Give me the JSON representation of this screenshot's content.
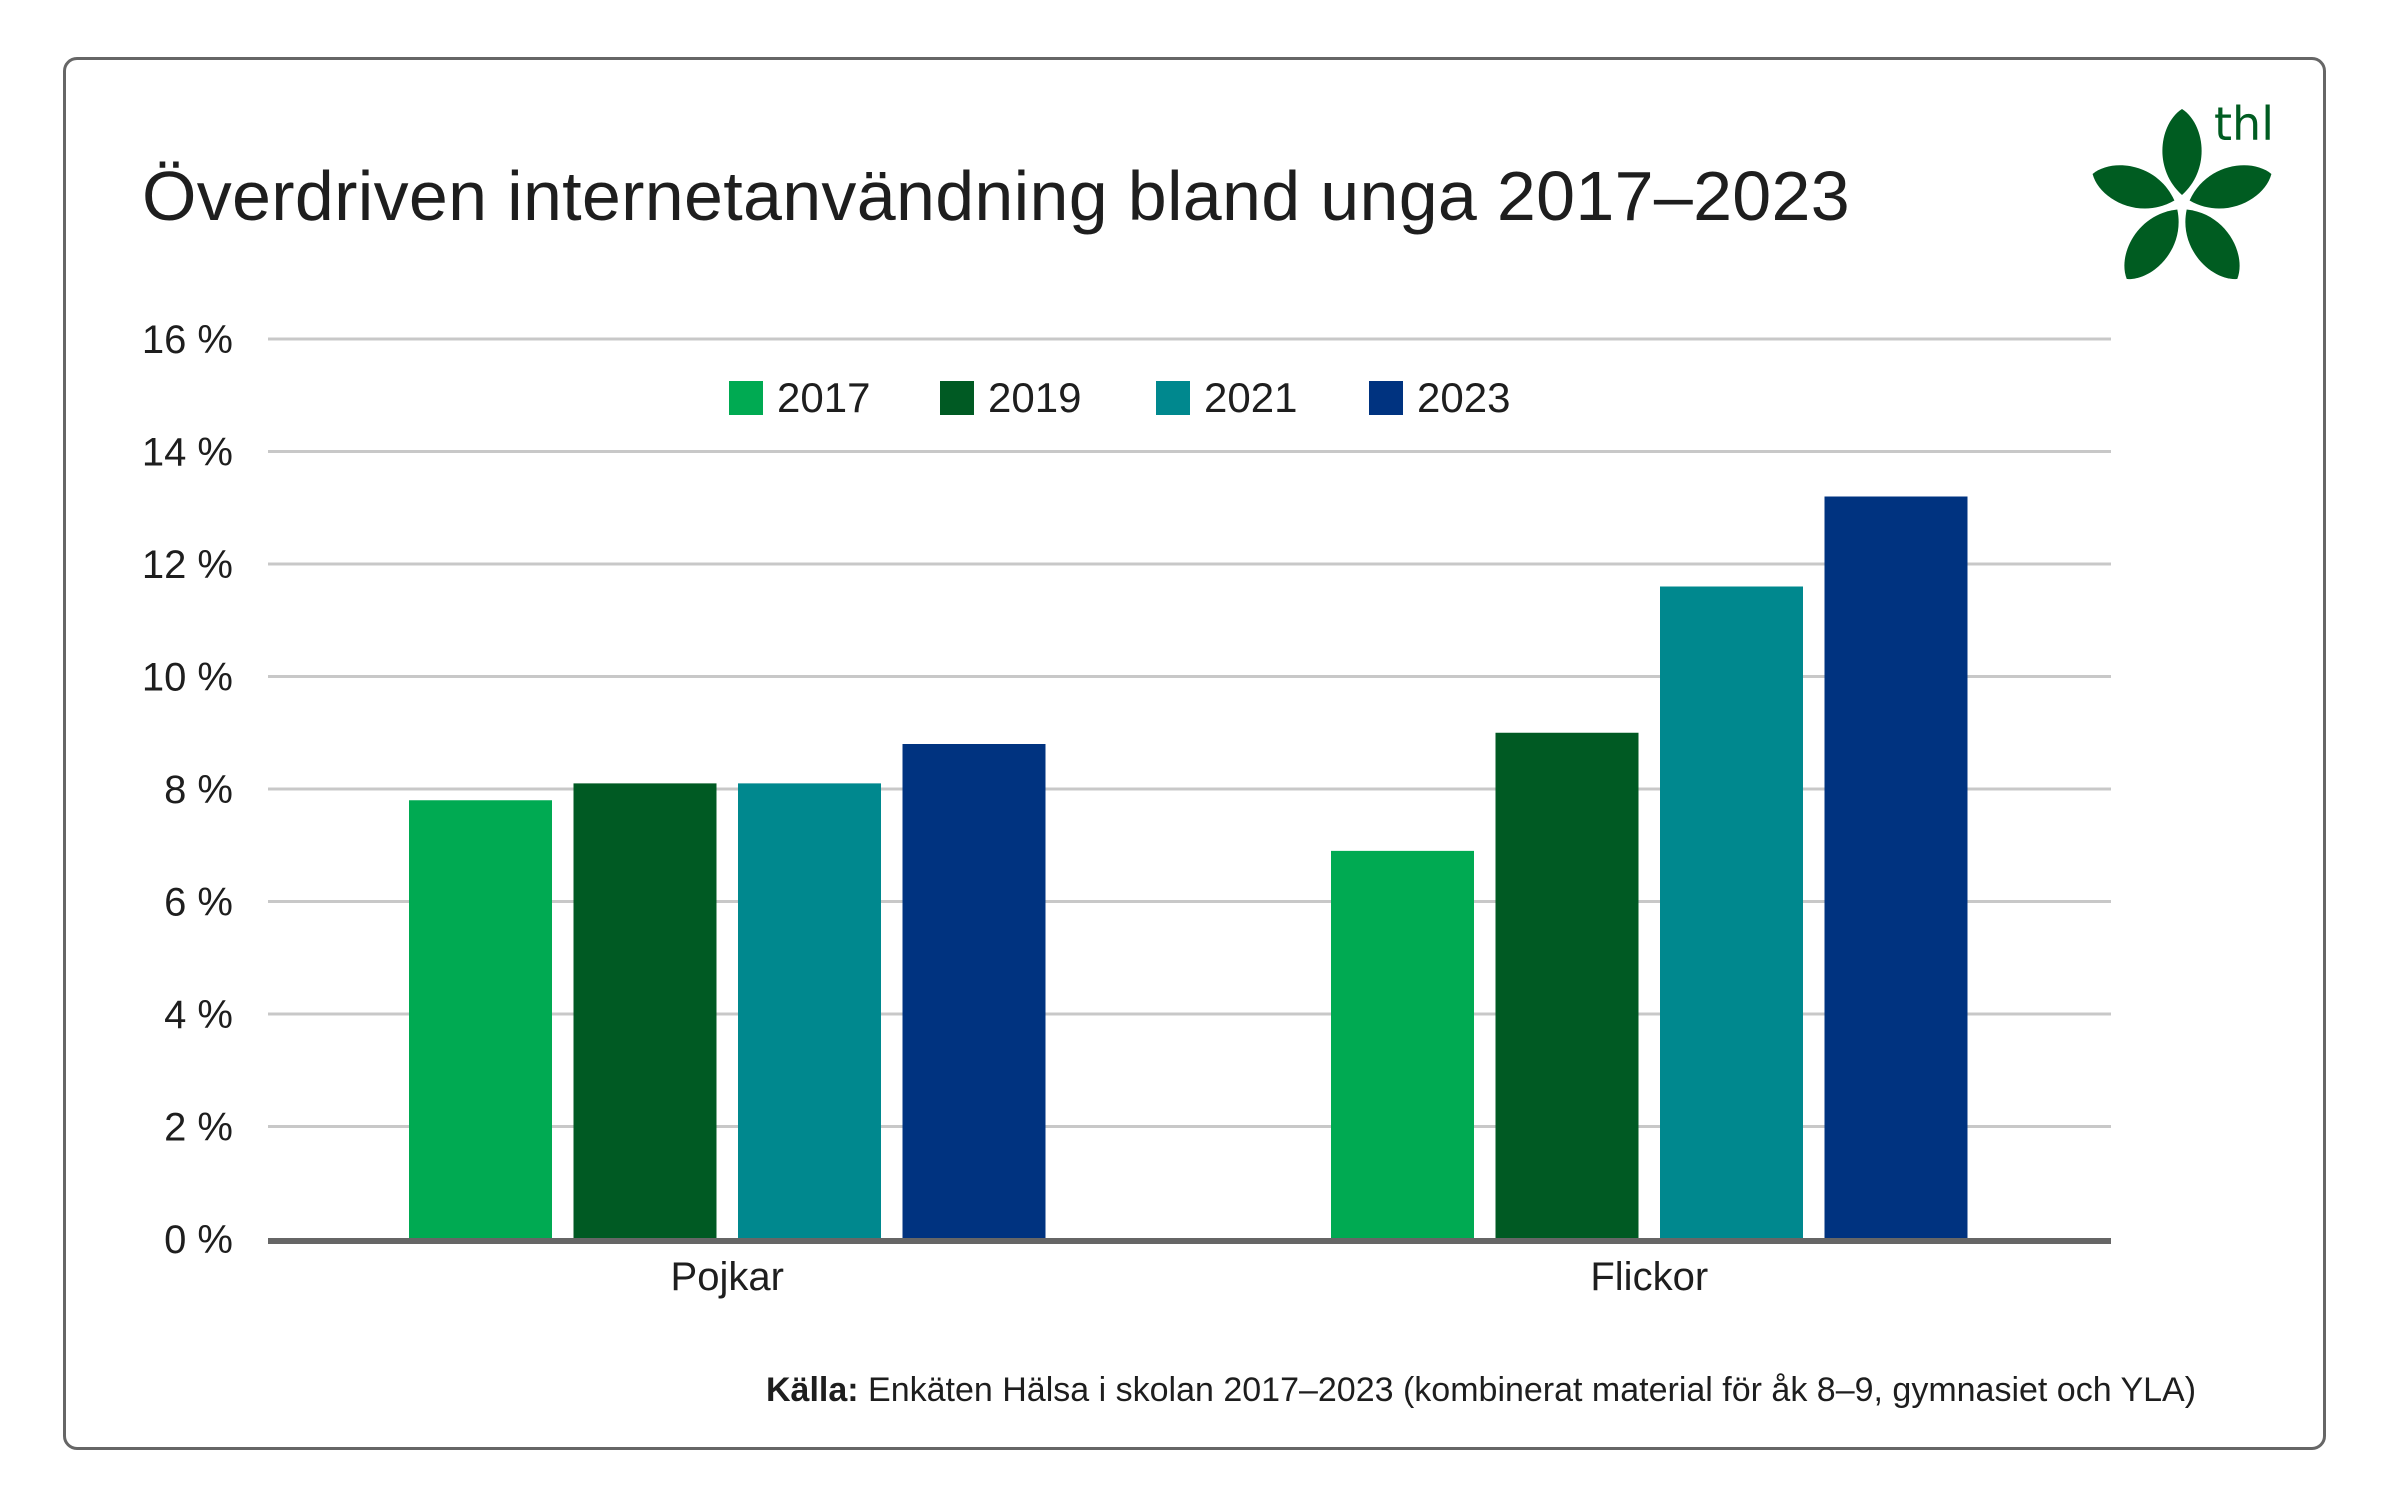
{
  "title": "Överdriven internetanvändning bland unga 2017–2023",
  "logo": {
    "text": "thl",
    "color": "#005c21"
  },
  "source": {
    "label": "Källa:",
    "text": " Enkäten Hälsa i skolan 2017–2023 (kombinerat material för åk 8–9, gymnasiet och YLA)"
  },
  "chart_data": {
    "type": "bar",
    "title": "Överdriven internetanvändning bland unga 2017–2023",
    "xlabel": "",
    "ylabel": "",
    "categories": [
      "Pojkar",
      "Flickor"
    ],
    "series": [
      {
        "name": "2017",
        "color": "#00aa52",
        "values": [
          7.8,
          6.9
        ]
      },
      {
        "name": "2019",
        "color": "#005a23",
        "values": [
          8.1,
          9.0
        ]
      },
      {
        "name": "2021",
        "color": "#00888e",
        "values": [
          8.1,
          11.6
        ]
      },
      {
        "name": "2023",
        "color": "#003380",
        "values": [
          8.8,
          13.2
        ]
      }
    ],
    "ylim": [
      0,
      16
    ],
    "yticks": [
      0,
      2,
      4,
      6,
      8,
      10,
      12,
      14,
      16
    ],
    "ytick_labels": [
      "0 %",
      "2 %",
      "4 %",
      "6 %",
      "8 %",
      "10 %",
      "12 %",
      "14 %",
      "16 %"
    ],
    "grid": true,
    "legend_position": "top-center"
  }
}
